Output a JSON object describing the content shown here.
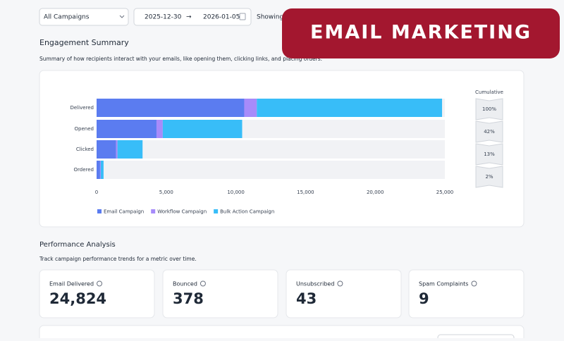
{
  "header": {
    "campaign_select": "All Campaigns",
    "date_from": "2025-12-30",
    "date_to": "2026-01-05",
    "showing": "Showing"
  },
  "banner": "EMAIL MARKETING",
  "engagement": {
    "title": "Engagement Summary",
    "subtitle": "Summary of how recipients interact with your emails, like opening them, clicking links, and placing orders."
  },
  "chart_data": {
    "type": "bar",
    "orientation": "horizontal",
    "stacked": true,
    "categories": [
      "Delivered",
      "Opened",
      "Clicked",
      "Ordered"
    ],
    "series": [
      {
        "name": "Email Campaign",
        "color": "#5b7cf0",
        "values": [
          10600,
          4300,
          1400,
          250
        ]
      },
      {
        "name": "Workflow Campaign",
        "color": "#a78bfa",
        "values": [
          900,
          450,
          100,
          50
        ]
      },
      {
        "name": "Bulk Action Campaign",
        "color": "#38bdf8",
        "values": [
          13300,
          5700,
          1800,
          200
        ]
      }
    ],
    "xlim": [
      0,
      25000
    ],
    "xticks": [
      0,
      {
        "value": 5000,
        "label": "5,000"
      },
      {
        "value": 10000,
        "label": "10,000"
      },
      {
        "value": 15000,
        "label": "15,000"
      },
      {
        "value": 20000,
        "label": "20,000"
      },
      {
        "value": 25000,
        "label": "25,000"
      }
    ],
    "legend": "bottom-left",
    "cumulative": {
      "title": "Cumulative",
      "values": [
        100,
        42,
        13,
        2
      ],
      "value_labels": [
        "100%",
        "42%",
        "13%",
        "2%"
      ]
    }
  },
  "performance": {
    "title": "Performance Analysis",
    "subtitle": "Track campaign performance trends for a metric over time.",
    "cards": [
      {
        "label": "Email Delivered",
        "value": "24,824"
      },
      {
        "label": "Bounced",
        "value": "378"
      },
      {
        "label": "Unsubscribed",
        "value": "43"
      },
      {
        "label": "Spam Complaints",
        "value": "9"
      }
    ]
  }
}
